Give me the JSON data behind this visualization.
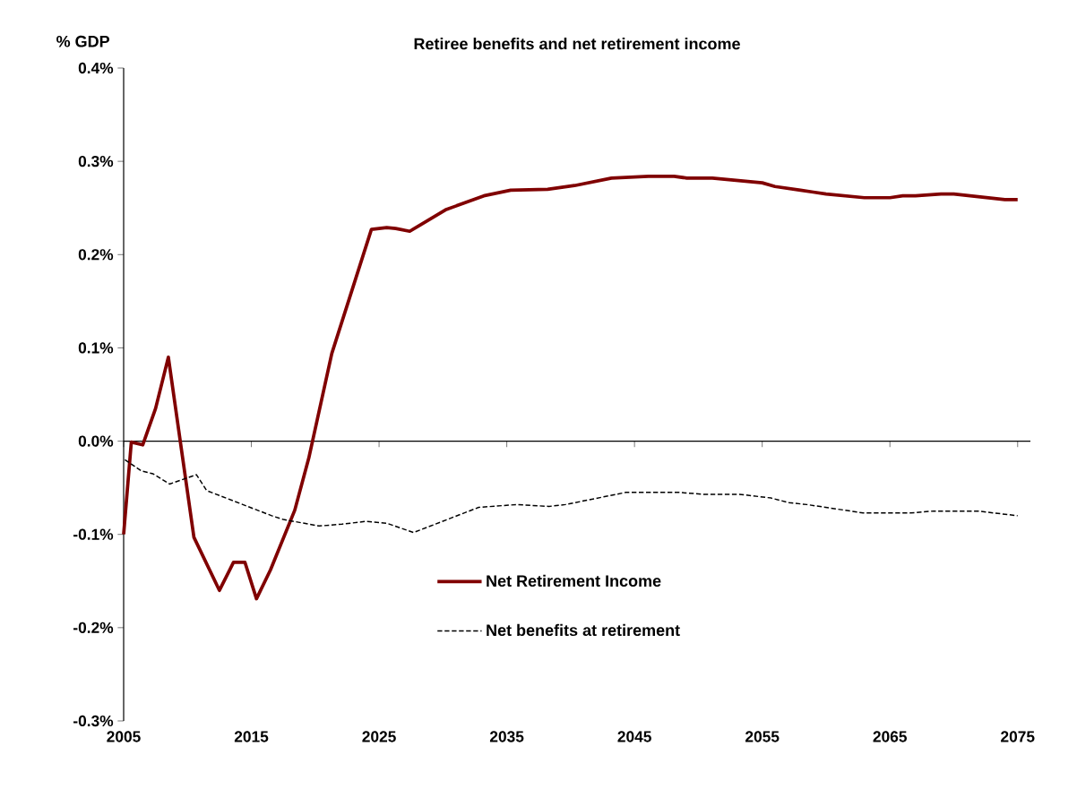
{
  "chart_data": {
    "type": "line",
    "title": "Retiree benefits and net retirement income",
    "ylabel": "% GDP",
    "xlim": [
      2005,
      2076
    ],
    "xticks": [
      2005,
      2015,
      2025,
      2035,
      2045,
      2055,
      2065,
      2075
    ],
    "ylim": [
      -0.3,
      0.4
    ],
    "yticks": [
      {
        "value": -0.3,
        "label": "-0.3%"
      },
      {
        "value": -0.2,
        "label": "-0.2%"
      },
      {
        "value": -0.1,
        "label": "-0.1%"
      },
      {
        "value": 0,
        "label": "0.0%"
      },
      {
        "value": 0.1,
        "label": "0.1%"
      },
      {
        "value": 0.2,
        "label": "0.2%"
      },
      {
        "value": 0.3,
        "label": "0.3%"
      },
      {
        "value": 0.4,
        "label": "0.4%"
      }
    ],
    "legend": "bottom",
    "marker": "none",
    "series": [
      {
        "name": "Net Retirement Income",
        "color": "#800000",
        "line_style": "solid",
        "x": [
          2005.0,
          2005.6,
          2006.5,
          2007.5,
          2008.5,
          2010.5,
          2012.5,
          2013.6,
          2014.5,
          2015.4,
          2016.5,
          2018.4,
          2019.5,
          2021.3,
          2024.4,
          2025.6,
          2026.3,
          2027.4,
          2030.2,
          2033.2,
          2035.3,
          2038.2,
          2040.3,
          2043.2,
          2046.1,
          2048.1,
          2049.1,
          2051.1,
          2055.0,
          2056.0,
          2058.0,
          2059.0,
          2060.0,
          2063.0,
          2065.0,
          2066.0,
          2067.0,
          2069.0,
          2070.0,
          2074.0,
          2075.0
        ],
        "values": [
          -0.1,
          -0.001,
          -0.004,
          0.035,
          0.09,
          -0.103,
          -0.16,
          -0.13,
          -0.13,
          -0.169,
          -0.138,
          -0.074,
          -0.018,
          0.094,
          0.227,
          0.229,
          0.228,
          0.225,
          0.248,
          0.263,
          0.269,
          0.27,
          0.274,
          0.282,
          0.284,
          0.284,
          0.282,
          0.282,
          0.277,
          0.273,
          0.269,
          0.267,
          0.265,
          0.261,
          0.261,
          0.263,
          0.263,
          0.265,
          0.265,
          0.259,
          0.259
        ]
      },
      {
        "name": "Net benefits at retirement",
        "color": "#000000",
        "line_style": "dashed",
        "x": [
          2005.1,
          2006.4,
          2007.3,
          2008.6,
          2010.7,
          2011.5,
          2016.6,
          2017.5,
          2020.3,
          2022.1,
          2024.0,
          2025.6,
          2027.7,
          2032.8,
          2035.8,
          2038.3,
          2039.6,
          2044.3,
          2048.5,
          2050.4,
          2053.2,
          2055.7,
          2057.1,
          2058.5,
          2062.9,
          2066.6,
          2068.4,
          2071.9,
          2075.0
        ],
        "values": [
          -0.02,
          -0.032,
          -0.035,
          -0.046,
          -0.036,
          -0.053,
          -0.08,
          -0.084,
          -0.091,
          -0.089,
          -0.086,
          -0.088,
          -0.098,
          -0.071,
          -0.068,
          -0.07,
          -0.068,
          -0.055,
          -0.055,
          -0.057,
          -0.057,
          -0.061,
          -0.066,
          -0.068,
          -0.077,
          -0.077,
          -0.075,
          -0.075,
          -0.08
        ]
      }
    ]
  }
}
